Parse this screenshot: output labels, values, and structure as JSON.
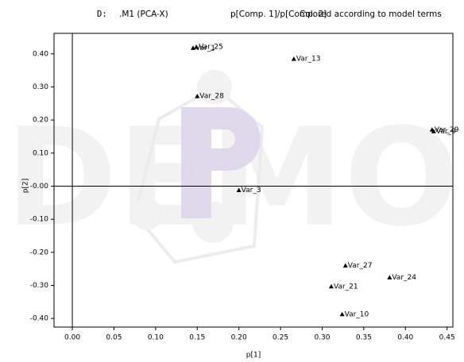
{
  "chart_data": {
    "type": "scatter",
    "title_parts": [
      "D:",
      ".M1 (PCA-X)",
      "p[Comp. 1]/p[Comp. 2]",
      "Colored according to model terms"
    ],
    "xlabel": "p[1]",
    "ylabel": "p[2]",
    "watermark": "DEMO",
    "labels": [
      "Var_1",
      "Var_25",
      "Var_13",
      "Var_28",
      "Var_29",
      "Var_9",
      "Var_3",
      "Var_27",
      "Var_24",
      "Var_21",
      "Var_10"
    ],
    "x": [
      0.145,
      0.149,
      0.266,
      0.15,
      0.432,
      0.434,
      0.2,
      0.328,
      0.381,
      0.311,
      0.324
    ],
    "y": [
      0.418,
      0.421,
      0.385,
      0.272,
      0.171,
      0.166,
      -0.012,
      -0.24,
      -0.276,
      -0.303,
      -0.387
    ],
    "color": "#000000",
    "xlim": [
      -0.022,
      0.457
    ],
    "ylim": [
      -0.426,
      0.462
    ],
    "xticks": [
      {
        "value": 0,
        "label": "0.00"
      },
      {
        "value": 0.05,
        "label": "0.05"
      },
      {
        "value": 0.1,
        "label": "0.10"
      },
      {
        "value": 0.15,
        "label": "0.15"
      },
      {
        "value": 0.2,
        "label": "0.20"
      },
      {
        "value": 0.25,
        "label": "0.25"
      },
      {
        "value": 0.3,
        "label": "0.30"
      },
      {
        "value": 0.35,
        "label": "0.35"
      },
      {
        "value": 0.4,
        "label": "0.40"
      },
      {
        "value": 0.45,
        "label": "0.45"
      }
    ],
    "yticks": [
      {
        "value": -0.4,
        "label": "-0.40"
      },
      {
        "value": -0.3,
        "label": "-0.30"
      },
      {
        "value": -0.2,
        "label": "-0.20"
      },
      {
        "value": -0.1,
        "label": "-0.10"
      },
      {
        "value": 0,
        "label": "-0.00"
      },
      {
        "value": 0.1,
        "label": "0.10"
      },
      {
        "value": 0.2,
        "label": "0.20"
      },
      {
        "value": 0.3,
        "label": "0.30"
      },
      {
        "value": 0.4,
        "label": "0.40"
      }
    ],
    "zero_lines": true
  }
}
